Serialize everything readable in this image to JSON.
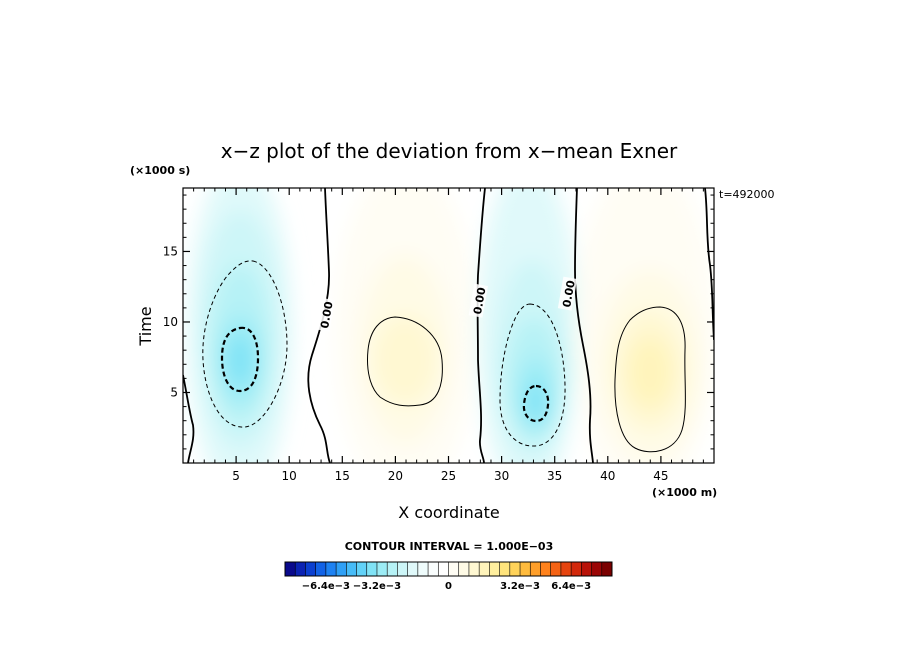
{
  "chart_data": {
    "type": "heatmap",
    "title": "x−z plot of the deviation from x−mean Exner",
    "xlabel": "X coordinate",
    "ylabel": "Time",
    "x_unit": "(×1000 m)",
    "y_unit": "(×1000 s)",
    "time_stamp": "t=492000",
    "xlim": [
      0,
      50
    ],
    "ylim": [
      0,
      19.5
    ],
    "x_ticks": [
      5,
      10,
      15,
      20,
      25,
      30,
      35,
      40,
      45
    ],
    "y_ticks": [
      5,
      10,
      15
    ],
    "contour_interval_text": "CONTOUR INTERVAL = 1.000E−03",
    "contour_labels": [
      {
        "x": 13.5,
        "y": 10.5,
        "text": "0.00"
      },
      {
        "x": 27.9,
        "y": 11.5,
        "text": "0.00"
      },
      {
        "x": 36.3,
        "y": 12.0,
        "text": "0.00"
      }
    ],
    "extrema": [
      {
        "x": 5.5,
        "y": 8.5,
        "value": -0.005
      },
      {
        "x": 20.5,
        "y": 7.5,
        "value": 0.0015
      },
      {
        "x": 33.0,
        "y": 4.5,
        "value": -0.005
      },
      {
        "x": 44.0,
        "y": 6.5,
        "value": 0.0025
      }
    ],
    "colorbar": {
      "tick_labels": [
        "−6.4e−3",
        "−3.2e−3",
        "0",
        "3.2e−3",
        "6.4e−3"
      ],
      "colors": [
        "#0a0a8c",
        "#0b23b3",
        "#0b3fd0",
        "#1262e6",
        "#1e82f2",
        "#2fa0f6",
        "#47bcf8",
        "#62d2f8",
        "#80e3f6",
        "#9cecf5",
        "#b6f2f6",
        "#cdf6f8",
        "#e0f9fa",
        "#effcfc",
        "#fafefe",
        "#ffffff",
        "#fffdf4",
        "#fffbe6",
        "#fff8d2",
        "#fff4bb",
        "#ffef9e",
        "#ffe47c",
        "#ffd35a",
        "#ffbb3d",
        "#ff9f2a",
        "#ff821c",
        "#f56314",
        "#e6440f",
        "#d2280b",
        "#b81208",
        "#9a0505",
        "#7a0000"
      ]
    }
  }
}
